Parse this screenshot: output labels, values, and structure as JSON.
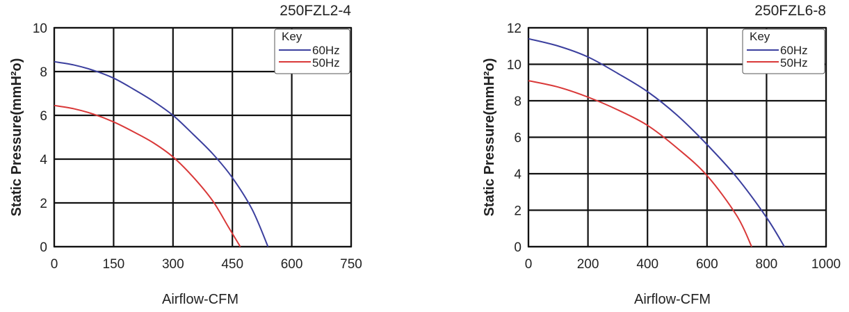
{
  "chart_data": [
    {
      "type": "line",
      "title": "250FZL2-4",
      "xlabel": "Airflow-CFM",
      "ylabel": "Static Pressure(mmH²o)",
      "xlim": [
        0,
        750
      ],
      "ylim": [
        0,
        10
      ],
      "xticks": [
        0,
        150,
        300,
        450,
        600,
        750
      ],
      "yticks": [
        0,
        2,
        4,
        6,
        8,
        10
      ],
      "grid": true,
      "legend": {
        "title": "Key",
        "placement": "top-right"
      },
      "series": [
        {
          "name": "60Hz",
          "color": "#3b3f9e",
          "x": [
            0,
            50,
            100,
            150,
            200,
            250,
            300,
            350,
            400,
            450,
            500,
            540
          ],
          "y": [
            8.45,
            8.3,
            8.05,
            7.7,
            7.2,
            6.65,
            6.0,
            5.15,
            4.25,
            3.15,
            1.7,
            0
          ]
        },
        {
          "name": "50Hz",
          "color": "#d93838",
          "x": [
            0,
            50,
            100,
            150,
            200,
            250,
            300,
            350,
            400,
            440,
            470
          ],
          "y": [
            6.45,
            6.3,
            6.05,
            5.7,
            5.25,
            4.75,
            4.1,
            3.2,
            2.1,
            0.9,
            0
          ]
        }
      ]
    },
    {
      "type": "line",
      "title": "250FZL6-8",
      "xlabel": "Airflow-CFM",
      "ylabel": "Static Pressure(mmH²o)",
      "xlim": [
        0,
        1000
      ],
      "ylim": [
        0,
        12
      ],
      "xticks": [
        0,
        200,
        400,
        600,
        800,
        1000
      ],
      "yticks": [
        0,
        2,
        4,
        6,
        8,
        10,
        12
      ],
      "grid": true,
      "legend": {
        "title": "Key",
        "placement": "top-right"
      },
      "series": [
        {
          "name": "60Hz",
          "color": "#3b3f9e",
          "x": [
            0,
            100,
            200,
            300,
            400,
            500,
            600,
            700,
            800,
            860
          ],
          "y": [
            11.4,
            11.0,
            10.4,
            9.5,
            8.5,
            7.2,
            5.6,
            3.8,
            1.6,
            0
          ]
        },
        {
          "name": "50Hz",
          "color": "#d93838",
          "x": [
            0,
            100,
            200,
            300,
            400,
            500,
            600,
            700,
            750
          ],
          "y": [
            9.1,
            8.75,
            8.2,
            7.5,
            6.65,
            5.4,
            3.9,
            1.7,
            0
          ]
        }
      ]
    }
  ]
}
